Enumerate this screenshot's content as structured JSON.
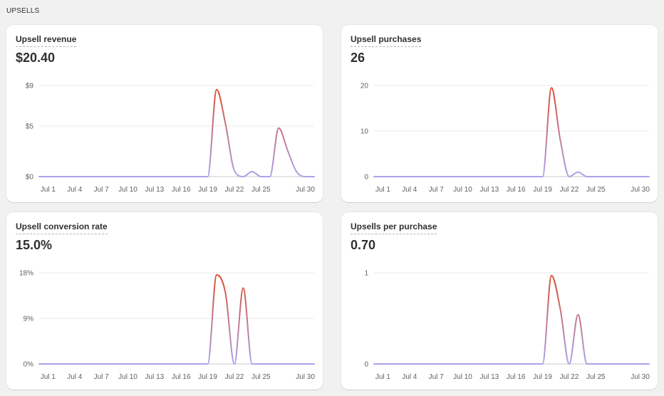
{
  "section": {
    "title": "UPSELLS"
  },
  "colors": {
    "line_high": "#e04a2b",
    "line_low": "#a9a3ea",
    "grid": "#ebebeb",
    "axis": "#c9c9c9"
  },
  "cards": [
    {
      "title": "Upsell revenue",
      "value": "$20.40",
      "chart_data": {
        "type": "line",
        "x_ticks": [
          "Jul 1",
          "Jul 4",
          "Jul 7",
          "Jul 10",
          "Jul 13",
          "Jul 16",
          "Jul 19",
          "Jul 22",
          "Jul 25",
          "Jul 30"
        ],
        "x_tick_days": [
          1,
          4,
          7,
          10,
          13,
          16,
          19,
          22,
          25,
          30
        ],
        "y_ticks": [
          "$0",
          "$5",
          "$9"
        ],
        "y_tick_values": [
          0,
          5,
          9
        ],
        "ylim": [
          0,
          9
        ],
        "xlim": [
          0,
          31
        ],
        "x": [
          0,
          1,
          2,
          3,
          4,
          5,
          6,
          7,
          8,
          9,
          10,
          11,
          12,
          13,
          14,
          15,
          16,
          17,
          18,
          19,
          20,
          21,
          22,
          23,
          24,
          25,
          26,
          27,
          28,
          29,
          30,
          31
        ],
        "values": [
          0,
          0,
          0,
          0,
          0,
          0,
          0,
          0,
          0,
          0,
          0,
          0,
          0,
          0,
          0,
          0,
          0,
          0,
          0,
          0,
          8.6,
          5.2,
          0.6,
          0,
          0.5,
          0,
          0,
          4.8,
          2.6,
          0.5,
          0,
          0
        ]
      }
    },
    {
      "title": "Upsell purchases",
      "value": "26",
      "chart_data": {
        "type": "line",
        "x_ticks": [
          "Jul 1",
          "Jul 4",
          "Jul 7",
          "Jul 10",
          "Jul 13",
          "Jul 16",
          "Jul 19",
          "Jul 22",
          "Jul 25",
          "Jul 30"
        ],
        "x_tick_days": [
          1,
          4,
          7,
          10,
          13,
          16,
          19,
          22,
          25,
          30
        ],
        "y_ticks": [
          "0",
          "10",
          "20"
        ],
        "y_tick_values": [
          0,
          10,
          20
        ],
        "ylim": [
          0,
          20
        ],
        "xlim": [
          0,
          31
        ],
        "x": [
          0,
          1,
          2,
          3,
          4,
          5,
          6,
          7,
          8,
          9,
          10,
          11,
          12,
          13,
          14,
          15,
          16,
          17,
          18,
          19,
          20,
          21,
          22,
          23,
          24,
          25,
          26,
          27,
          28,
          29,
          30,
          31
        ],
        "values": [
          0,
          0,
          0,
          0,
          0,
          0,
          0,
          0,
          0,
          0,
          0,
          0,
          0,
          0,
          0,
          0,
          0,
          0,
          0,
          0,
          19.5,
          8,
          0,
          1,
          0,
          0,
          0,
          0,
          0,
          0,
          0,
          0
        ]
      }
    },
    {
      "title": "Upsell conversion rate",
      "value": "15.0%",
      "chart_data": {
        "type": "line",
        "x_ticks": [
          "Jul 1",
          "Jul 4",
          "Jul 7",
          "Jul 10",
          "Jul 13",
          "Jul 16",
          "Jul 19",
          "Jul 22",
          "Jul 25",
          "Jul 30"
        ],
        "x_tick_days": [
          1,
          4,
          7,
          10,
          13,
          16,
          19,
          22,
          25,
          30
        ],
        "y_ticks": [
          "0%",
          "9%",
          "18%"
        ],
        "y_tick_values": [
          0,
          9,
          18
        ],
        "ylim": [
          0,
          18
        ],
        "xlim": [
          0,
          31
        ],
        "x": [
          0,
          1,
          2,
          3,
          4,
          5,
          6,
          7,
          8,
          9,
          10,
          11,
          12,
          13,
          14,
          15,
          16,
          17,
          18,
          19,
          20,
          21,
          22,
          23,
          24,
          25,
          26,
          27,
          28,
          29,
          30,
          31
        ],
        "values": [
          0,
          0,
          0,
          0,
          0,
          0,
          0,
          0,
          0,
          0,
          0,
          0,
          0,
          0,
          0,
          0,
          0,
          0,
          0,
          0,
          17.6,
          14,
          0,
          15,
          0,
          0,
          0,
          0,
          0,
          0,
          0,
          0
        ]
      }
    },
    {
      "title": "Upsells per purchase",
      "value": "0.70",
      "chart_data": {
        "type": "line",
        "x_ticks": [
          "Jul 1",
          "Jul 4",
          "Jul 7",
          "Jul 10",
          "Jul 13",
          "Jul 16",
          "Jul 19",
          "Jul 22",
          "Jul 25",
          "Jul 30"
        ],
        "x_tick_days": [
          1,
          4,
          7,
          10,
          13,
          16,
          19,
          22,
          25,
          30
        ],
        "y_ticks": [
          "0",
          "1"
        ],
        "y_tick_values": [
          0,
          1
        ],
        "ylim": [
          0,
          1
        ],
        "xlim": [
          0,
          31
        ],
        "x": [
          0,
          1,
          2,
          3,
          4,
          5,
          6,
          7,
          8,
          9,
          10,
          11,
          12,
          13,
          14,
          15,
          16,
          17,
          18,
          19,
          20,
          21,
          22,
          23,
          24,
          25,
          26,
          27,
          28,
          29,
          30,
          31
        ],
        "values": [
          0,
          0,
          0,
          0,
          0,
          0,
          0,
          0,
          0,
          0,
          0,
          0,
          0,
          0,
          0,
          0,
          0,
          0,
          0,
          0,
          0.97,
          0.6,
          0,
          0.54,
          0,
          0,
          0,
          0,
          0,
          0,
          0,
          0
        ]
      }
    }
  ]
}
